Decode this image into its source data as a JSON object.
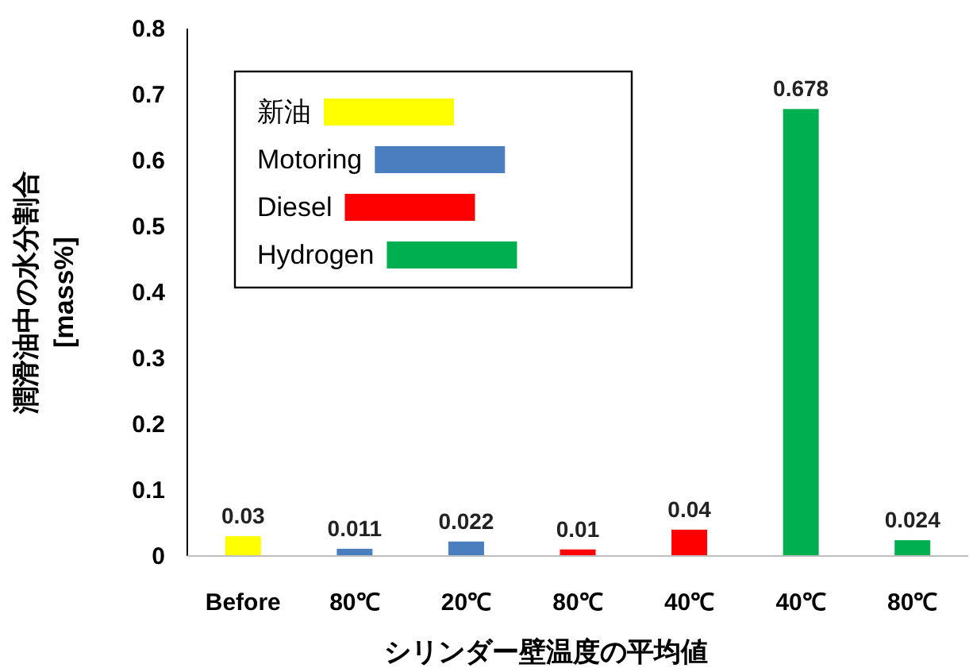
{
  "chart_data": {
    "type": "bar",
    "data_labels": true,
    "legend": "top left",
    "grid": false,
    "ylabel": "潤滑油中の水分割合\n[mass%]",
    "xlabel": "シリンダー壁温度の平均値",
    "categories": [
      "Before",
      "80℃",
      "20℃",
      "80℃",
      "40℃",
      "40℃",
      "80℃"
    ],
    "ylim": [
      0,
      0.8
    ],
    "yticks": [
      {
        "value": 0,
        "label": "0"
      },
      0.1,
      0.2,
      0.3,
      0.4,
      0.5,
      0.6,
      0.7,
      0.8
    ],
    "series": [
      {
        "name": "新油",
        "color": "#ffff00",
        "values": [
          0.03,
          null,
          null,
          null,
          null,
          null,
          null
        ]
      },
      {
        "name": "Motoring",
        "color": "#4a7ebf",
        "values": [
          null,
          0.011,
          0.022,
          null,
          null,
          null,
          null
        ]
      },
      {
        "name": "Diesel",
        "color": "#ff0000",
        "values": [
          null,
          null,
          null,
          0.01,
          0.04,
          null,
          null
        ]
      },
      {
        "name": "Hydrogen",
        "color": "#00b050",
        "values": [
          null,
          null,
          null,
          null,
          null,
          0.678,
          0.024
        ]
      }
    ]
  }
}
